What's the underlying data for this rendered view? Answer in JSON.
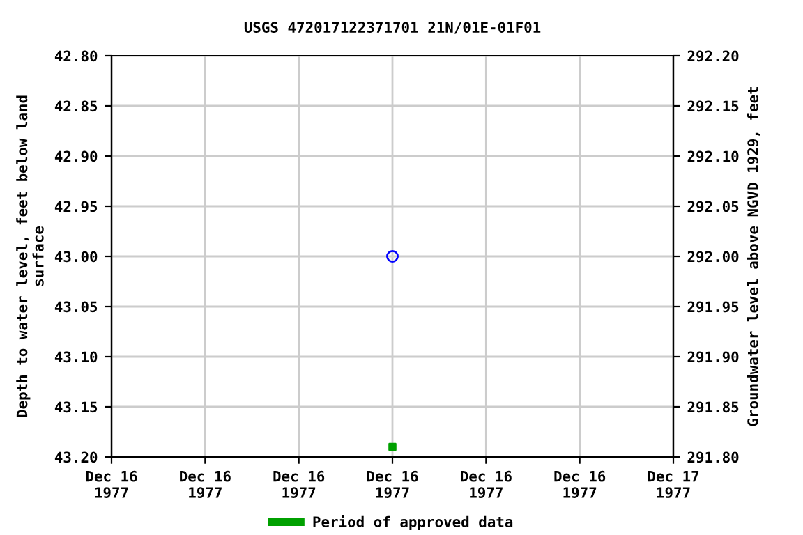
{
  "chart_data": {
    "type": "scatter",
    "title": "USGS 472017122371701 21N/01E-01F01",
    "ylabel": "Depth to water level, feet below land\nsurface",
    "y2label": "Groundwater level above NGVD 1929, feet",
    "x": [
      "1977-12-16T12:00"
    ],
    "series": [
      {
        "color": "#0000ff",
        "marker": "circle",
        "values": [
          43.0
        ]
      },
      {
        "name": "Period of approved data",
        "color": "#00a000",
        "marker": "square",
        "values": [
          43.19
        ]
      }
    ],
    "xlim": [
      "1977-12-16T00:00",
      "1977-12-17T00:00"
    ],
    "xticks": [
      {
        "value": "1977-12-16T00:00",
        "label": "Dec 16\n1977"
      },
      {
        "value": "1977-12-16T04:00",
        "label": "Dec 16\n1977"
      },
      {
        "value": "1977-12-16T08:00",
        "label": "Dec 16\n1977"
      },
      {
        "value": "1977-12-16T12:00",
        "label": "Dec 16\n1977"
      },
      {
        "value": "1977-12-16T16:00",
        "label": "Dec 16\n1977"
      },
      {
        "value": "1977-12-16T20:00",
        "label": "Dec 16\n1977"
      },
      {
        "value": "1977-12-17T00:00",
        "label": "Dec 17\n1977"
      }
    ],
    "ylim": [
      43.2,
      42.8
    ],
    "yticks": [
      {
        "value": 42.8,
        "label": "42.80"
      },
      {
        "value": 42.85,
        "label": "42.85"
      },
      {
        "value": 42.9,
        "label": "42.90"
      },
      {
        "value": 42.95,
        "label": "42.95"
      },
      {
        "value": 43.0,
        "label": "43.00"
      },
      {
        "value": 43.05,
        "label": "43.05"
      },
      {
        "value": 43.1,
        "label": "43.10"
      },
      {
        "value": 43.15,
        "label": "43.15"
      },
      {
        "value": 43.2,
        "label": "43.20"
      }
    ],
    "y2lim": [
      291.8,
      292.2
    ],
    "y2ticks": [
      {
        "value": 291.8,
        "label": "291.80"
      },
      {
        "value": 291.85,
        "label": "291.85"
      },
      {
        "value": 291.9,
        "label": "291.90"
      },
      {
        "value": 291.95,
        "label": "291.95"
      },
      {
        "value": 292.0,
        "label": "292.00"
      },
      {
        "value": 292.05,
        "label": "292.05"
      },
      {
        "value": 292.1,
        "label": "292.10"
      },
      {
        "value": 292.15,
        "label": "292.15"
      },
      {
        "value": 292.2,
        "label": "292.20"
      }
    ],
    "grid": true,
    "legend": "bottom"
  }
}
